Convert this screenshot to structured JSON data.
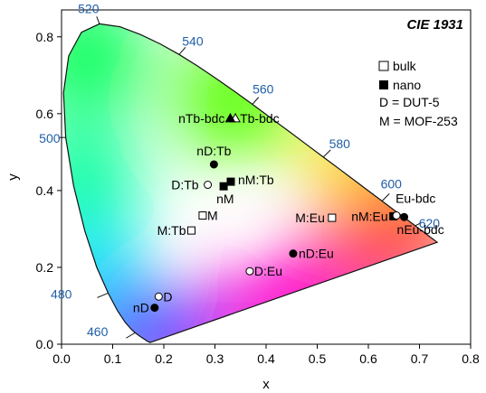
{
  "chart_data": {
    "type": "scatter",
    "title": "CIE 1931",
    "xlabel": "x",
    "ylabel": "y",
    "xlim": [
      0.0,
      0.8
    ],
    "ylim": [
      0.0,
      0.87
    ],
    "x_ticks": [
      "0.0",
      "0.1",
      "0.2",
      "0.3",
      "0.4",
      "0.5",
      "0.6",
      "0.7",
      "0.8"
    ],
    "y_ticks": [
      "0.0",
      "0.2",
      "0.4",
      "0.6",
      "0.8"
    ],
    "wavelength_color": "#1f5fa8",
    "wavelength_labels": [
      {
        "text": "460",
        "x": 0.144,
        "y": 0.03
      },
      {
        "text": "480",
        "x": 0.091,
        "y": 0.133
      },
      {
        "text": "500",
        "x": 0.008,
        "y": 0.538
      },
      {
        "text": "520",
        "x": 0.074,
        "y": 0.834
      },
      {
        "text": "540",
        "x": 0.23,
        "y": 0.754
      },
      {
        "text": "560",
        "x": 0.373,
        "y": 0.624
      },
      {
        "text": "580",
        "x": 0.512,
        "y": 0.487
      },
      {
        "text": "600",
        "x": 627,
        "y": 0.373
      },
      {
        "text": "620",
        "x": 0.691,
        "y": 0.308
      }
    ],
    "points": [
      {
        "label": "Tb-bdc",
        "type": "bulk",
        "marker": "triangle",
        "x": 0.34,
        "y": 0.588
      },
      {
        "label": "nTb-bdc",
        "type": "nano",
        "marker": "triangle",
        "x": 0.33,
        "y": 0.588
      },
      {
        "label": "nD:Tb",
        "type": "nano",
        "marker": "circle",
        "x": 0.298,
        "y": 0.468
      },
      {
        "label": "D:Tb",
        "type": "bulk",
        "marker": "circle",
        "x": 0.286,
        "y": 0.415
      },
      {
        "label": "nM:Tb",
        "type": "nano",
        "marker": "square",
        "x": 0.331,
        "y": 0.423
      },
      {
        "label": "nM",
        "type": "nano",
        "marker": "square",
        "x": 0.317,
        "y": 0.411
      },
      {
        "label": "M",
        "type": "bulk",
        "marker": "square",
        "x": 0.276,
        "y": 0.335
      },
      {
        "label": "M:Tb",
        "type": "bulk",
        "marker": "square",
        "x": 0.254,
        "y": 0.296
      },
      {
        "label": "M:Eu",
        "type": "bulk",
        "marker": "square",
        "x": 0.529,
        "y": 0.329
      },
      {
        "label": "nM:Eu",
        "type": "nano",
        "marker": "square",
        "x": 0.649,
        "y": 0.333
      },
      {
        "label": "Eu-bdc",
        "type": "bulk",
        "marker": "circle",
        "x": 0.655,
        "y": 0.335
      },
      {
        "label": "nEu-bdc",
        "type": "nano",
        "marker": "circle",
        "x": 0.67,
        "y": 0.331
      },
      {
        "label": "nD:Eu",
        "type": "nano",
        "marker": "circle",
        "x": 0.453,
        "y": 0.236
      },
      {
        "label": "D:Eu",
        "type": "bulk",
        "marker": "circle",
        "x": 0.368,
        "y": 0.19
      },
      {
        "label": "D",
        "type": "bulk",
        "marker": "circle",
        "x": 0.19,
        "y": 0.124
      },
      {
        "label": "nD",
        "type": "nano",
        "marker": "circle",
        "x": 0.182,
        "y": 0.095
      }
    ],
    "legend": {
      "position": "right",
      "items": [
        {
          "symbol": "open-square",
          "text": "bulk"
        },
        {
          "symbol": "filled-square",
          "text": "nano"
        },
        {
          "symbol": "none",
          "text": "D = DUT-5"
        },
        {
          "symbol": "none",
          "text": "M = MOF-253"
        }
      ]
    }
  }
}
